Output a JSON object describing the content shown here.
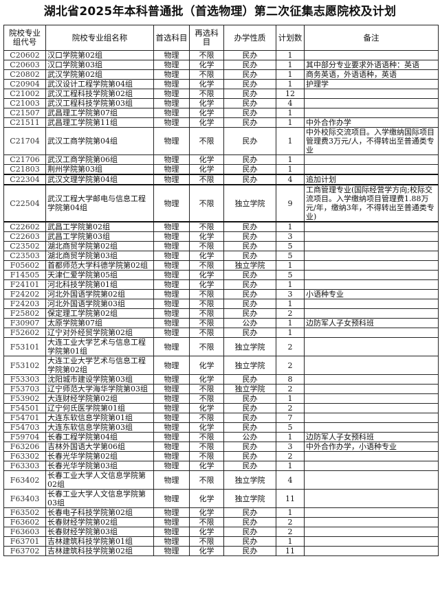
{
  "title": "湖北省2025年本科普通批（首选物理）第二次征集志愿院校及计划",
  "columns": [
    "院校专业组代号",
    "院校专业组名称",
    "首选科目",
    "再选科目",
    "办学性质",
    "计划数",
    "备注"
  ],
  "rows": [
    [
      "C20602",
      "汉口学院第02组",
      "物理",
      "不限",
      "民办",
      "1",
      ""
    ],
    [
      "C20603",
      "汉口学院第03组",
      "物理",
      "化学",
      "民办",
      "1",
      "其中部分专业要求外语语种：英语"
    ],
    [
      "C20802",
      "武汉学院第02组",
      "物理",
      "不限",
      "民办",
      "1",
      "商务英语，外语语种，英语"
    ],
    [
      "C20904",
      "武汉设计工程学院第04组",
      "物理",
      "化学",
      "民办",
      "1",
      "护理学"
    ],
    [
      "C21002",
      "武汉工程科技学院第02组",
      "物理",
      "不限",
      "民办",
      "12",
      ""
    ],
    [
      "C21003",
      "武汉工程科技学院第03组",
      "物理",
      "化学",
      "民办",
      "4",
      ""
    ],
    [
      "C21507",
      "武昌理工学院第07组",
      "物理",
      "化学",
      "民办",
      "1",
      ""
    ],
    [
      "C21511",
      "武昌理工学院第11组",
      "物理",
      "化学",
      "民办",
      "1",
      "中外合作办学"
    ],
    [
      "C21704",
      "武汉工商学院第04组",
      "物理",
      "不限",
      "民办",
      "1",
      "中外校际交流项目。入学缴纳国际项目管理费3万元/人，不得转出至普通类专业"
    ],
    [
      "C21706",
      "武汉工商学院第06组",
      "物理",
      "化学",
      "民办",
      "1",
      ""
    ],
    [
      "C21803",
      "荆州学院第03组",
      "物理",
      "化学",
      "民办",
      "1",
      ""
    ],
    [
      "C22304",
      "武汉文理学院第04组",
      "物理",
      "不限",
      "民办",
      "4",
      "追加计划"
    ],
    [
      "C22504",
      "武汉工程大学邮电与信息工程学院第04组",
      "物理",
      "不限",
      "独立学院",
      "9",
      "工商管理专业(国际经营学方向;校际交流项目。入学缴纳项目管理费1.88万元/年，缴纳3年，不得转出至普通类专业)"
    ],
    [
      "C22602",
      "武昌工学院第02组",
      "物理",
      "不限",
      "民办",
      "1",
      ""
    ],
    [
      "C22603",
      "武昌工学院第03组",
      "物理",
      "化学",
      "民办",
      "3",
      ""
    ],
    [
      "C23502",
      "湖北商贸学院第02组",
      "物理",
      "不限",
      "民办",
      "5",
      ""
    ],
    [
      "C23503",
      "湖北商贸学院第03组",
      "物理",
      "化学",
      "民办",
      "5",
      ""
    ],
    [
      "F05602",
      "首都师范大学科德学院第02组",
      "物理",
      "不限",
      "独立学院",
      "1",
      ""
    ],
    [
      "F14505",
      "天津仁爱学院第05组",
      "物理",
      "化学",
      "民办",
      "5",
      ""
    ],
    [
      "F24101",
      "河北科技学院第01组",
      "物理",
      "化学",
      "民办",
      "1",
      ""
    ],
    [
      "F24202",
      "河北外国语学院第02组",
      "物理",
      "不限",
      "民办",
      "3",
      "小语种专业"
    ],
    [
      "F24203",
      "河北外国语学院第03组",
      "物理",
      "不限",
      "民办",
      "1",
      ""
    ],
    [
      "F25802",
      "保定理工学院第02组",
      "物理",
      "不限",
      "民办",
      "2",
      ""
    ],
    [
      "F30907",
      "太原学院第07组",
      "物理",
      "不限",
      "公办",
      "1",
      "边防军人子女预科班"
    ],
    [
      "F52602",
      "辽宁对外经贸学院第02组",
      "物理",
      "不限",
      "民办",
      "1",
      ""
    ],
    [
      "F53101",
      "大连工业大学艺术与信息工程学院第01组",
      "物理",
      "不限",
      "独立学院",
      "2",
      ""
    ],
    [
      "F53102",
      "大连工业大学艺术与信息工程学院第02组",
      "物理",
      "化学",
      "独立学院",
      "2",
      ""
    ],
    [
      "F53303",
      "沈阳城市建设学院第03组",
      "物理",
      "化学",
      "民办",
      "8",
      ""
    ],
    [
      "F53703",
      "辽宁师范大学海华学院第03组",
      "物理",
      "不限",
      "独立学院",
      "2",
      ""
    ],
    [
      "F53902",
      "大连财经学院第02组",
      "物理",
      "不限",
      "民办",
      "1",
      ""
    ],
    [
      "F54501",
      "辽宁何氏医学院第01组",
      "物理",
      "化学",
      "民办",
      "2",
      ""
    ],
    [
      "F54701",
      "大连东软信息学院第01组",
      "物理",
      "不限",
      "民办",
      "7",
      ""
    ],
    [
      "F54703",
      "大连东软信息学院第03组",
      "物理",
      "化学",
      "民办",
      "5",
      ""
    ],
    [
      "F59704",
      "长春工程学院第04组",
      "物理",
      "不限",
      "公办",
      "1",
      "边防军人子女预科班"
    ],
    [
      "F63206",
      "吉林外国语大学第06组",
      "物理",
      "不限",
      "民办",
      "3",
      "中外合作办学，小语种专业"
    ],
    [
      "F63302",
      "长春光华学院第02组",
      "物理",
      "不限",
      "民办",
      "2",
      ""
    ],
    [
      "F63303",
      "长春光华学院第03组",
      "物理",
      "化学",
      "民办",
      "1",
      ""
    ],
    [
      "F63402",
      "长春工业大学人文信息学院第02组",
      "物理",
      "不限",
      "独立学院",
      "4",
      ""
    ],
    [
      "F63403",
      "长春工业大学人文信息学院第03组",
      "物理",
      "化学",
      "独立学院",
      "11",
      ""
    ],
    [
      "F63502",
      "长春电子科技学院第02组",
      "物理",
      "化学",
      "民办",
      "1",
      ""
    ],
    [
      "F63602",
      "长春财经学院第02组",
      "物理",
      "不限",
      "民办",
      "2",
      ""
    ],
    [
      "F63603",
      "长春财经学院第03组",
      "物理",
      "化学",
      "民办",
      "2",
      ""
    ],
    [
      "F63701",
      "吉林建筑科技学院第01组",
      "物理",
      "不限",
      "民办",
      "1",
      ""
    ],
    [
      "F63702",
      "吉林建筑科技学院第02组",
      "物理",
      "化学",
      "民办",
      "11",
      ""
    ]
  ]
}
